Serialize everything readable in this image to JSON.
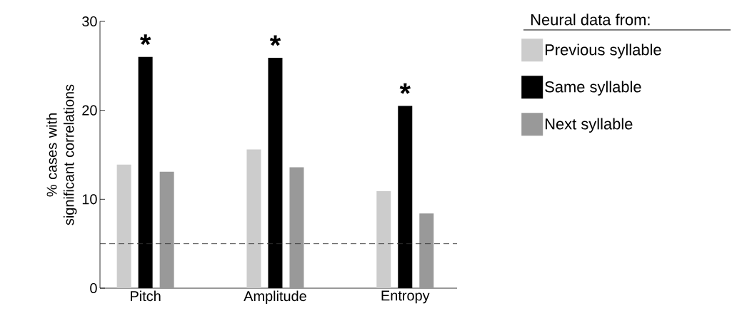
{
  "chart_data": {
    "type": "bar",
    "ylabel": "% cases with significant correlations",
    "legend_title": "Neural data from:",
    "categories": [
      "Pitch",
      "Amplitude",
      "Entropy"
    ],
    "series": [
      {
        "name": "Previous syllable",
        "color": "#cccccc",
        "values": [
          13.9,
          15.6,
          10.9
        ]
      },
      {
        "name": "Same syllable",
        "color": "#000000",
        "values": [
          26.0,
          25.9,
          20.5
        ]
      },
      {
        "name": "Next syllable",
        "color": "#999999",
        "values": [
          13.1,
          13.6,
          8.4
        ]
      }
    ],
    "ylim": [
      0,
      30
    ],
    "yticks": [
      0,
      10,
      20,
      30
    ],
    "legend": "right",
    "grid": false,
    "ref_lines": [
      {
        "axis": "y",
        "value": 5,
        "color": "#333333",
        "line_style": "dashed"
      }
    ],
    "annotations": [
      "*",
      "*",
      "*"
    ]
  }
}
